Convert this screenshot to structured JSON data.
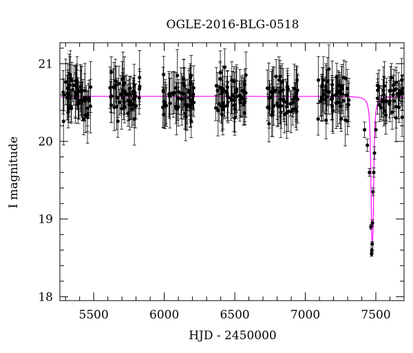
{
  "chart_data": {
    "type": "scatter",
    "title": "OGLE-2016-BLG-0518",
    "xlabel": "HJD - 2450000",
    "ylabel": "I magnitude",
    "xlim": [
      5260,
      7700
    ],
    "ylim": [
      21.27,
      17.95
    ],
    "y_inverted": true,
    "x_ticks": [
      5500,
      6000,
      6500,
      7000,
      7500
    ],
    "y_ticks": [
      18,
      19,
      20,
      21
    ],
    "x_minor_step": 100,
    "y_minor_step": 0.2,
    "grid": false,
    "colors": {
      "points": "#000000",
      "model": "#ff00ff"
    },
    "series": [
      {
        "kind": "points_with_errorbars",
        "seasons": [
          {
            "x0": 5265,
            "x1": 5480
          },
          {
            "x0": 5615,
            "x1": 5830
          },
          {
            "x0": 5990,
            "x1": 6210
          },
          {
            "x0": 6365,
            "x1": 6585
          },
          {
            "x0": 6730,
            "x1": 6950
          },
          {
            "x0": 7090,
            "x1": 7310
          },
          {
            "x0": 7420,
            "x1": 7700
          }
        ],
        "baseline_mag": 20.58,
        "scatter_mag": 0.22,
        "typical_error": 0.25,
        "peak_points": [
          {
            "x": 7420,
            "y": 20.15,
            "err": 0.1
          },
          {
            "x": 7440,
            "y": 19.95,
            "err": 0.08
          },
          {
            "x": 7455,
            "y": 19.6,
            "err": 0.05
          },
          {
            "x": 7465,
            "y": 18.9,
            "err": 0.03
          },
          {
            "x": 7470,
            "y": 18.55,
            "err": 0.03
          },
          {
            "x": 7472,
            "y": 18.6,
            "err": 0.03
          },
          {
            "x": 7474,
            "y": 18.68,
            "err": 0.03
          },
          {
            "x": 7476,
            "y": 18.95,
            "err": 0.04
          },
          {
            "x": 7480,
            "y": 19.35,
            "err": 0.05
          },
          {
            "x": 7485,
            "y": 19.6,
            "err": 0.06
          },
          {
            "x": 7490,
            "y": 19.85,
            "err": 0.08
          },
          {
            "x": 7500,
            "y": 20.15,
            "err": 0.1
          }
        ]
      },
      {
        "kind": "model_curve",
        "baseline_mag": 20.58,
        "peak_mag": 18.7,
        "t0": 7475,
        "width": 11
      }
    ]
  }
}
